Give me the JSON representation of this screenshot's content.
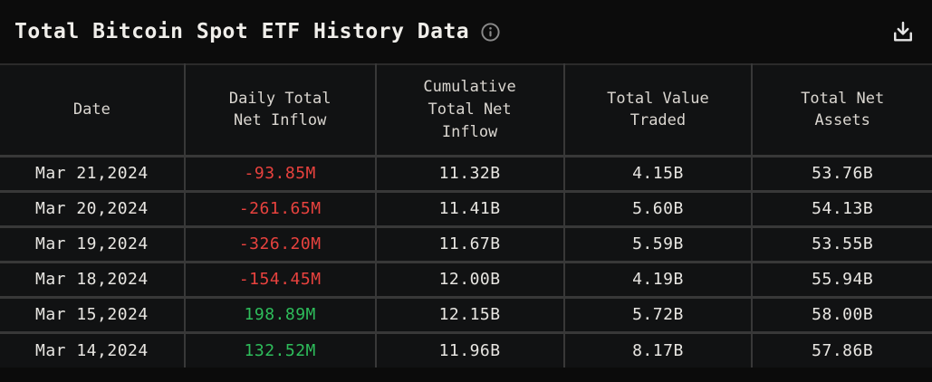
{
  "header": {
    "title": "Total Bitcoin Spot ETF History Data",
    "info_icon": "info-circle-icon",
    "download_icon": "download-icon"
  },
  "colors": {
    "negative": "#e8423e",
    "positive": "#2ebd5b"
  },
  "table": {
    "columns": [
      "Date",
      "Daily Total\nNet Inflow",
      "Cumulative\nTotal Net\nInflow",
      "Total Value\nTraded",
      "Total Net\nAssets"
    ],
    "rows": [
      {
        "date": "Mar 21,2024",
        "daily_net_inflow": "-93.85M",
        "trend": "down",
        "cumulative_net_inflow": "11.32B",
        "value_traded": "4.15B",
        "net_assets": "53.76B"
      },
      {
        "date": "Mar 20,2024",
        "daily_net_inflow": "-261.65M",
        "trend": "down",
        "cumulative_net_inflow": "11.41B",
        "value_traded": "5.60B",
        "net_assets": "54.13B"
      },
      {
        "date": "Mar 19,2024",
        "daily_net_inflow": "-326.20M",
        "trend": "down",
        "cumulative_net_inflow": "11.67B",
        "value_traded": "5.59B",
        "net_assets": "53.55B"
      },
      {
        "date": "Mar 18,2024",
        "daily_net_inflow": "-154.45M",
        "trend": "down",
        "cumulative_net_inflow": "12.00B",
        "value_traded": "4.19B",
        "net_assets": "55.94B"
      },
      {
        "date": "Mar 15,2024",
        "daily_net_inflow": "198.89M",
        "trend": "up",
        "cumulative_net_inflow": "12.15B",
        "value_traded": "5.72B",
        "net_assets": "58.00B"
      },
      {
        "date": "Mar 14,2024",
        "daily_net_inflow": "132.52M",
        "trend": "up",
        "cumulative_net_inflow": "11.96B",
        "value_traded": "8.17B",
        "net_assets": "57.86B"
      }
    ]
  }
}
